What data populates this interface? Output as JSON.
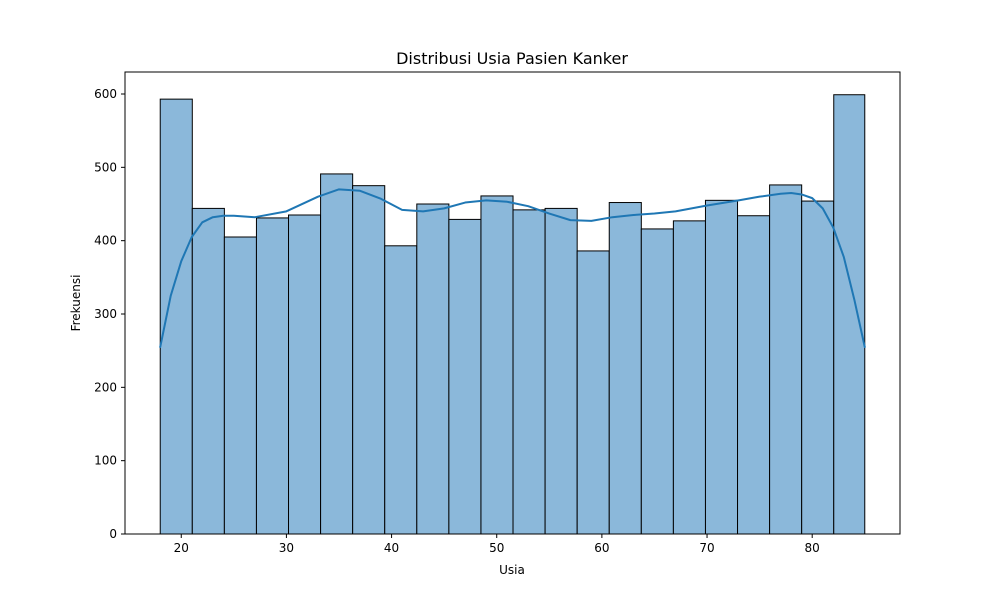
{
  "chart_data": {
    "type": "bar",
    "title": "Distribusi Usia Pasien Kanker",
    "xlabel": "Usia",
    "ylabel": "Frekuensi",
    "xlim": [
      14.65,
      88.35
    ],
    "ylim": [
      0,
      630
    ],
    "x_ticks": [
      20,
      30,
      40,
      50,
      60,
      70,
      80
    ],
    "y_ticks": [
      0,
      100,
      200,
      300,
      400,
      500,
      600
    ],
    "bins": [
      {
        "start": 18.0,
        "end": 21.05,
        "value": 593
      },
      {
        "start": 21.05,
        "end": 24.1,
        "value": 444
      },
      {
        "start": 24.1,
        "end": 27.15,
        "value": 405
      },
      {
        "start": 27.15,
        "end": 30.2,
        "value": 431
      },
      {
        "start": 30.2,
        "end": 33.25,
        "value": 435
      },
      {
        "start": 33.25,
        "end": 36.3,
        "value": 491
      },
      {
        "start": 36.3,
        "end": 39.35,
        "value": 475
      },
      {
        "start": 39.35,
        "end": 42.4,
        "value": 393
      },
      {
        "start": 42.4,
        "end": 45.45,
        "value": 450
      },
      {
        "start": 45.45,
        "end": 48.5,
        "value": 429
      },
      {
        "start": 48.5,
        "end": 51.55,
        "value": 461
      },
      {
        "start": 51.55,
        "end": 54.6,
        "value": 442
      },
      {
        "start": 54.6,
        "end": 57.65,
        "value": 444
      },
      {
        "start": 57.65,
        "end": 60.7,
        "value": 386
      },
      {
        "start": 60.7,
        "end": 63.75,
        "value": 452
      },
      {
        "start": 63.75,
        "end": 66.8,
        "value": 416
      },
      {
        "start": 66.8,
        "end": 69.85,
        "value": 427
      },
      {
        "start": 69.85,
        "end": 72.9,
        "value": 455
      },
      {
        "start": 72.9,
        "end": 75.95,
        "value": 434
      },
      {
        "start": 75.95,
        "end": 79.0,
        "value": 476
      },
      {
        "start": 79.0,
        "end": 82.05,
        "value": 454
      },
      {
        "start": 82.05,
        "end": 85.0,
        "value": 599
      }
    ],
    "kde": {
      "x": [
        18,
        19,
        20,
        21,
        22,
        23,
        24,
        25,
        27,
        30,
        33,
        35,
        37,
        39,
        41,
        43,
        45,
        47,
        49,
        51,
        53,
        55,
        57,
        59,
        61,
        63,
        65,
        67,
        70,
        73,
        75,
        77,
        78,
        79,
        80,
        81,
        82,
        83,
        84,
        85
      ],
      "y": [
        255,
        325,
        372,
        405,
        425,
        432,
        434,
        434,
        432,
        440,
        460,
        470,
        468,
        457,
        442,
        440,
        444,
        452,
        455,
        453,
        447,
        437,
        428,
        427,
        432,
        435,
        437,
        440,
        448,
        455,
        460,
        464,
        465,
        463,
        458,
        444,
        418,
        378,
        320,
        255
      ]
    },
    "colors": {
      "bar_fill": "#8bb8da",
      "bar_edge": "#000000",
      "kde_line": "#1f77b4"
    },
    "grid": false,
    "legend": "none"
  }
}
